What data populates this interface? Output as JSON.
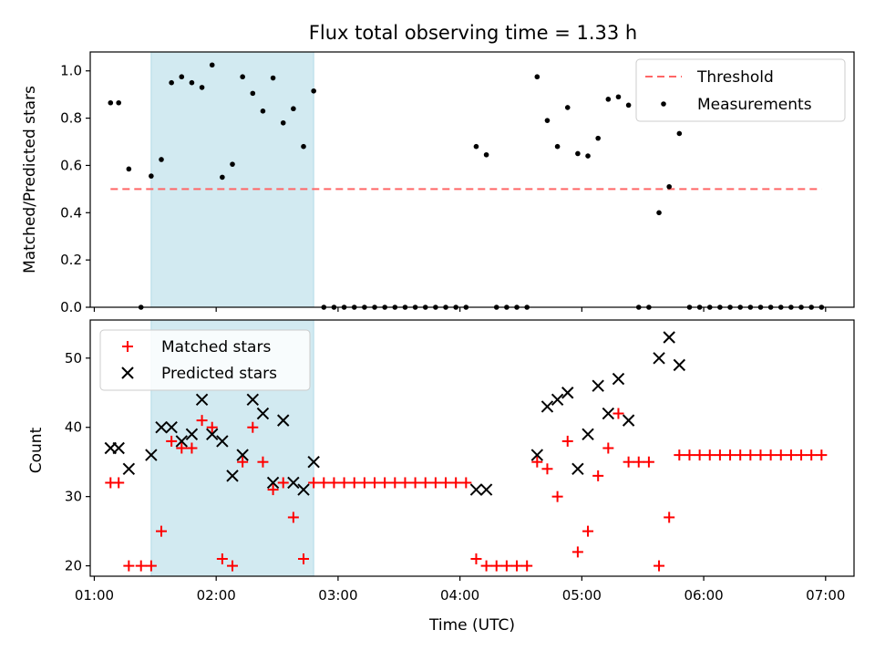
{
  "chart_data": [
    {
      "type": "scatter",
      "title": "Flux total observing time = 1.33 h",
      "xlabel": "",
      "ylabel": "Matched/Predicted stars",
      "xlim": [
        "00:58",
        "07:14"
      ],
      "ylim": [
        0,
        1.08
      ],
      "yticks": [
        0.0,
        0.2,
        0.4,
        0.6,
        0.8,
        1.0
      ],
      "ytick_labels": [
        "0.0",
        "0.2",
        "0.4",
        "0.6",
        "0.8",
        "1.0"
      ],
      "shaded_span": {
        "start": "01:28",
        "end": "02:48",
        "color": "#add8e6"
      },
      "legend": {
        "placement": "upper right",
        "entries": [
          "Threshold",
          "Measurements"
        ]
      },
      "threshold": {
        "name": "Threshold",
        "value": 0.5,
        "x_start": "01:08",
        "x_end": "06:58",
        "color": "#ff6666",
        "style": "dashed"
      },
      "series": [
        {
          "name": "Measurements",
          "color": "#000000",
          "marker": "dot",
          "points": [
            [
              "01:08",
              0.865
            ],
            [
              "01:12",
              0.865
            ],
            [
              "01:17",
              0.585
            ],
            [
              "01:23",
              0.0
            ],
            [
              "01:28",
              0.555
            ],
            [
              "01:33",
              0.625
            ],
            [
              "01:38",
              0.95
            ],
            [
              "01:43",
              0.975
            ],
            [
              "01:48",
              0.95
            ],
            [
              "01:53",
              0.93
            ],
            [
              "01:58",
              1.025
            ],
            [
              "02:03",
              0.55
            ],
            [
              "02:08",
              0.605
            ],
            [
              "02:13",
              0.975
            ],
            [
              "02:18",
              0.905
            ],
            [
              "02:23",
              0.83
            ],
            [
              "02:28",
              0.97
            ],
            [
              "02:33",
              0.78
            ],
            [
              "02:38",
              0.84
            ],
            [
              "02:43",
              0.68
            ],
            [
              "02:48",
              0.915
            ],
            [
              "02:53",
              0.0
            ],
            [
              "02:58",
              0.0
            ],
            [
              "03:03",
              0.0
            ],
            [
              "03:08",
              0.0
            ],
            [
              "03:13",
              0.0
            ],
            [
              "03:18",
              0.0
            ],
            [
              "03:23",
              0.0
            ],
            [
              "03:28",
              0.0
            ],
            [
              "03:33",
              0.0
            ],
            [
              "03:38",
              0.0
            ],
            [
              "03:43",
              0.0
            ],
            [
              "03:48",
              0.0
            ],
            [
              "03:53",
              0.0
            ],
            [
              "03:58",
              0.0
            ],
            [
              "04:03",
              0.0
            ],
            [
              "04:08",
              0.68
            ],
            [
              "04:13",
              0.645
            ],
            [
              "04:18",
              0.0
            ],
            [
              "04:23",
              0.0
            ],
            [
              "04:28",
              0.0
            ],
            [
              "04:33",
              0.0
            ],
            [
              "04:38",
              0.975
            ],
            [
              "04:43",
              0.79
            ],
            [
              "04:48",
              0.68
            ],
            [
              "04:53",
              0.845
            ],
            [
              "04:58",
              0.65
            ],
            [
              "05:03",
              0.64
            ],
            [
              "05:08",
              0.715
            ],
            [
              "05:13",
              0.88
            ],
            [
              "05:18",
              0.89
            ],
            [
              "05:23",
              0.855
            ],
            [
              "05:28",
              0.0
            ],
            [
              "05:33",
              0.0
            ],
            [
              "05:38",
              0.4
            ],
            [
              "05:43",
              0.51
            ],
            [
              "05:48",
              0.735
            ],
            [
              "05:53",
              0.0
            ],
            [
              "05:58",
              0.0
            ],
            [
              "06:03",
              0.0
            ],
            [
              "06:08",
              0.0
            ],
            [
              "06:13",
              0.0
            ],
            [
              "06:18",
              0.0
            ],
            [
              "06:23",
              0.0
            ],
            [
              "06:28",
              0.0
            ],
            [
              "06:33",
              0.0
            ],
            [
              "06:38",
              0.0
            ],
            [
              "06:43",
              0.0
            ],
            [
              "06:48",
              0.0
            ],
            [
              "06:53",
              0.0
            ],
            [
              "06:58",
              0.0
            ]
          ]
        }
      ]
    },
    {
      "type": "scatter",
      "title": "",
      "xlabel": "Time (UTC)",
      "ylabel": "Count",
      "xlim": [
        "00:58",
        "07:14"
      ],
      "ylim": [
        18.5,
        55.5
      ],
      "yticks": [
        20,
        30,
        40,
        50
      ],
      "ytick_labels": [
        "20",
        "30",
        "40",
        "50"
      ],
      "xticks": [
        "01:00",
        "02:00",
        "03:00",
        "04:00",
        "05:00",
        "06:00",
        "07:00"
      ],
      "xtick_labels": [
        "01:00",
        "02:00",
        "03:00",
        "04:00",
        "05:00",
        "06:00",
        "07:00"
      ],
      "shaded_span": {
        "start": "01:28",
        "end": "02:48",
        "color": "#add8e6"
      },
      "legend": {
        "placement": "upper left",
        "entries": [
          "Matched stars",
          "Predicted stars"
        ]
      },
      "series": [
        {
          "name": "Matched stars",
          "color": "#ff0000",
          "marker": "plus",
          "points": [
            [
              "01:08",
              32
            ],
            [
              "01:12",
              32
            ],
            [
              "01:17",
              20
            ],
            [
              "01:23",
              20
            ],
            [
              "01:28",
              20
            ],
            [
              "01:33",
              25
            ],
            [
              "01:38",
              38
            ],
            [
              "01:43",
              37
            ],
            [
              "01:48",
              37
            ],
            [
              "01:53",
              41
            ],
            [
              "01:58",
              40
            ],
            [
              "02:03",
              21
            ],
            [
              "02:08",
              20
            ],
            [
              "02:13",
              35
            ],
            [
              "02:18",
              40
            ],
            [
              "02:23",
              35
            ],
            [
              "02:28",
              31
            ],
            [
              "02:33",
              32
            ],
            [
              "02:38",
              27
            ],
            [
              "02:43",
              21
            ],
            [
              "02:48",
              32
            ],
            [
              "02:53",
              32
            ],
            [
              "02:58",
              32
            ],
            [
              "03:03",
              32
            ],
            [
              "03:08",
              32
            ],
            [
              "03:13",
              32
            ],
            [
              "03:18",
              32
            ],
            [
              "03:23",
              32
            ],
            [
              "03:28",
              32
            ],
            [
              "03:33",
              32
            ],
            [
              "03:38",
              32
            ],
            [
              "03:43",
              32
            ],
            [
              "03:48",
              32
            ],
            [
              "03:53",
              32
            ],
            [
              "03:58",
              32
            ],
            [
              "04:03",
              32
            ],
            [
              "04:08",
              21
            ],
            [
              "04:13",
              20
            ],
            [
              "04:18",
              20
            ],
            [
              "04:23",
              20
            ],
            [
              "04:28",
              20
            ],
            [
              "04:33",
              20
            ],
            [
              "04:38",
              35
            ],
            [
              "04:43",
              34
            ],
            [
              "04:48",
              30
            ],
            [
              "04:53",
              38
            ],
            [
              "04:58",
              22
            ],
            [
              "05:03",
              25
            ],
            [
              "05:08",
              33
            ],
            [
              "05:13",
              37
            ],
            [
              "05:18",
              42
            ],
            [
              "05:23",
              35
            ],
            [
              "05:28",
              35
            ],
            [
              "05:33",
              35
            ],
            [
              "05:38",
              20
            ],
            [
              "05:43",
              27
            ],
            [
              "05:48",
              36
            ],
            [
              "05:53",
              36
            ],
            [
              "05:58",
              36
            ],
            [
              "06:03",
              36
            ],
            [
              "06:08",
              36
            ],
            [
              "06:13",
              36
            ],
            [
              "06:18",
              36
            ],
            [
              "06:23",
              36
            ],
            [
              "06:28",
              36
            ],
            [
              "06:33",
              36
            ],
            [
              "06:38",
              36
            ],
            [
              "06:43",
              36
            ],
            [
              "06:48",
              36
            ],
            [
              "06:53",
              36
            ],
            [
              "06:58",
              36
            ]
          ]
        },
        {
          "name": "Predicted stars",
          "color": "#000000",
          "marker": "x",
          "points": [
            [
              "01:08",
              37
            ],
            [
              "01:12",
              37
            ],
            [
              "01:17",
              34
            ],
            [
              "01:28",
              36
            ],
            [
              "01:33",
              40
            ],
            [
              "01:38",
              40
            ],
            [
              "01:43",
              38
            ],
            [
              "01:48",
              39
            ],
            [
              "01:53",
              44
            ],
            [
              "01:58",
              39
            ],
            [
              "02:03",
              38
            ],
            [
              "02:08",
              33
            ],
            [
              "02:13",
              36
            ],
            [
              "02:18",
              44
            ],
            [
              "02:23",
              42
            ],
            [
              "02:28",
              32
            ],
            [
              "02:33",
              41
            ],
            [
              "02:38",
              32
            ],
            [
              "02:43",
              31
            ],
            [
              "02:48",
              35
            ],
            [
              "04:08",
              31
            ],
            [
              "04:13",
              31
            ],
            [
              "04:38",
              36
            ],
            [
              "04:43",
              43
            ],
            [
              "04:48",
              44
            ],
            [
              "04:53",
              45
            ],
            [
              "04:58",
              34
            ],
            [
              "05:03",
              39
            ],
            [
              "05:08",
              46
            ],
            [
              "05:13",
              42
            ],
            [
              "05:18",
              47
            ],
            [
              "05:23",
              41
            ],
            [
              "05:38",
              50
            ],
            [
              "05:43",
              53
            ],
            [
              "05:48",
              49
            ]
          ]
        }
      ]
    }
  ]
}
